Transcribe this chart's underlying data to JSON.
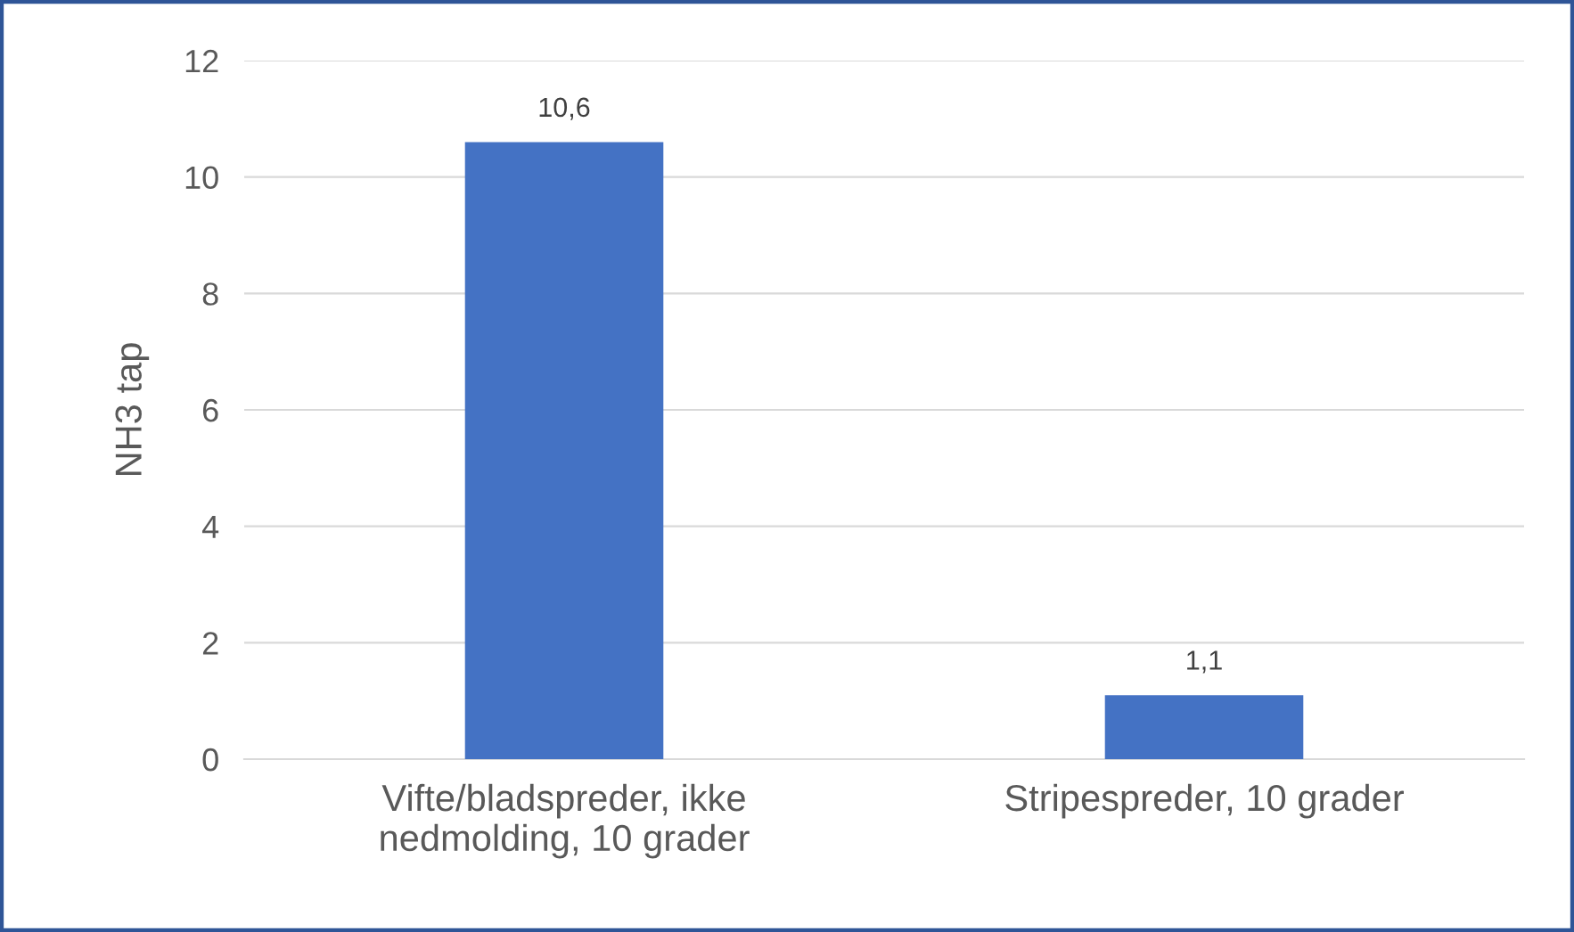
{
  "chart_data": {
    "type": "bar",
    "ylabel": "NH3 tap",
    "categories": [
      "Vifte/bladspreder, ikke\nnedmolding, 10 grader",
      "Stripespreder, 10 grader"
    ],
    "values": [
      10.6,
      1.1
    ],
    "color": "#4472c4",
    "value_labels": [
      "10,6",
      "1,1"
    ],
    "ylim": [
      0,
      12
    ],
    "yticks": [
      0,
      2,
      4,
      6,
      8,
      10,
      12
    ],
    "grid": "y"
  }
}
